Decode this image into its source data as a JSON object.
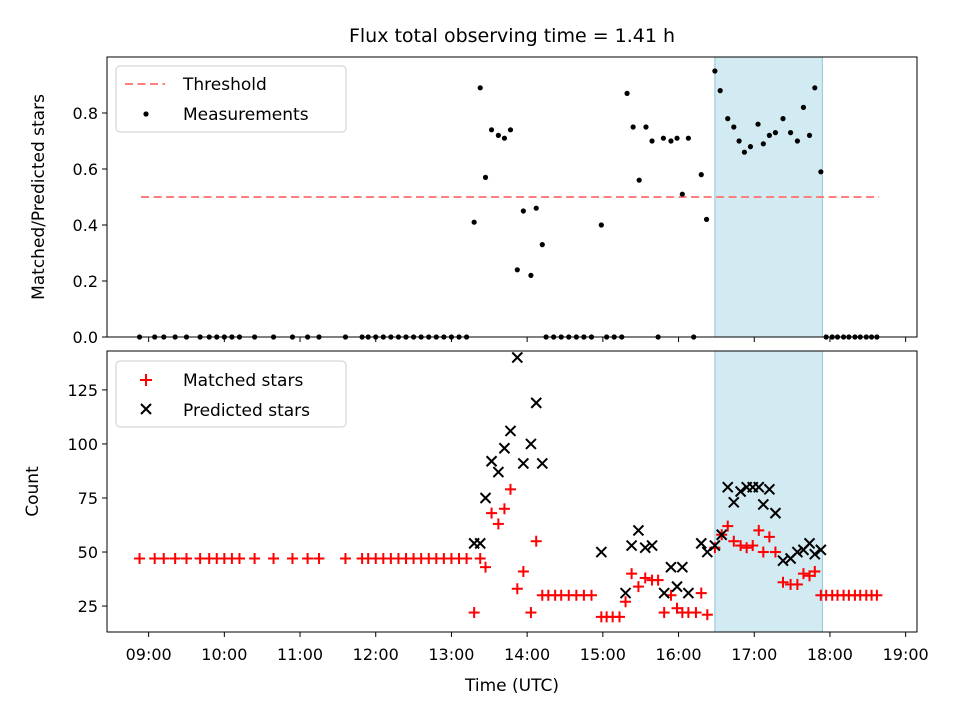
{
  "chart_data": {
    "title": "Flux total observing time = 1.41 h",
    "xlabel": "Time (UTC)",
    "x_ticks": [
      "09:00",
      "10:00",
      "11:00",
      "12:00",
      "13:00",
      "14:00",
      "15:00",
      "16:00",
      "17:00",
      "18:00",
      "19:00"
    ],
    "x_range_hours": [
      8.45,
      19.15
    ],
    "highlight_span_hours": [
      16.48,
      17.9
    ],
    "colors": {
      "threshold": "#ff7f7f",
      "measurement": "#000000",
      "matched": "#ff0000",
      "predicted": "#000000",
      "highlight": "#add8e6"
    },
    "panels": [
      {
        "type": "scatter",
        "ylabel": "Matched/Predicted stars",
        "ylim": [
          0,
          1.0
        ],
        "y_ticks": [
          "0.0",
          "0.2",
          "0.4",
          "0.6",
          "0.8"
        ],
        "y_tick_values": [
          0,
          0.2,
          0.4,
          0.6,
          0.8
        ],
        "legend": "top-left",
        "threshold": {
          "name": "Threshold",
          "value": 0.5,
          "x_range": [
            8.9,
            18.65
          ]
        },
        "series": [
          {
            "name": "Measurements",
            "points": [
              [
                8.88,
                0
              ],
              [
                9.08,
                0
              ],
              [
                9.2,
                0
              ],
              [
                9.35,
                0
              ],
              [
                9.5,
                0
              ],
              [
                9.68,
                0
              ],
              [
                9.8,
                0
              ],
              [
                9.9,
                0
              ],
              [
                10.0,
                0
              ],
              [
                10.1,
                0
              ],
              [
                10.2,
                0
              ],
              [
                10.4,
                0
              ],
              [
                10.65,
                0
              ],
              [
                10.9,
                0
              ],
              [
                11.1,
                0
              ],
              [
                11.25,
                0
              ],
              [
                11.6,
                0
              ],
              [
                11.82,
                0
              ],
              [
                11.9,
                0
              ],
              [
                12.0,
                0
              ],
              [
                12.1,
                0
              ],
              [
                12.2,
                0
              ],
              [
                12.3,
                0
              ],
              [
                12.4,
                0
              ],
              [
                12.5,
                0
              ],
              [
                12.6,
                0
              ],
              [
                12.7,
                0
              ],
              [
                12.8,
                0
              ],
              [
                12.9,
                0
              ],
              [
                13.0,
                0
              ],
              [
                13.1,
                0
              ],
              [
                13.2,
                0
              ],
              [
                13.3,
                0.41
              ],
              [
                13.38,
                0.89
              ],
              [
                13.45,
                0.57
              ],
              [
                13.53,
                0.74
              ],
              [
                13.62,
                0.72
              ],
              [
                13.7,
                0.71
              ],
              [
                13.78,
                0.74
              ],
              [
                13.87,
                0.24
              ],
              [
                13.95,
                0.45
              ],
              [
                14.05,
                0.22
              ],
              [
                14.12,
                0.46
              ],
              [
                14.2,
                0.33
              ],
              [
                14.25,
                0
              ],
              [
                14.35,
                0
              ],
              [
                14.45,
                0
              ],
              [
                14.55,
                0
              ],
              [
                14.65,
                0
              ],
              [
                14.75,
                0
              ],
              [
                14.85,
                0
              ],
              [
                14.98,
                0.4
              ],
              [
                15.05,
                0
              ],
              [
                15.15,
                0
              ],
              [
                15.25,
                0
              ],
              [
                15.32,
                0.87
              ],
              [
                15.4,
                0.75
              ],
              [
                15.48,
                0.56
              ],
              [
                15.57,
                0.75
              ],
              [
                15.65,
                0.7
              ],
              [
                15.73,
                0
              ],
              [
                15.8,
                0.71
              ],
              [
                15.9,
                0.7
              ],
              [
                15.98,
                0.71
              ],
              [
                16.05,
                0.51
              ],
              [
                16.13,
                0.71
              ],
              [
                16.2,
                0
              ],
              [
                16.3,
                0.58
              ],
              [
                16.37,
                0.42
              ],
              [
                16.48,
                0.95
              ],
              [
                16.55,
                0.88
              ],
              [
                16.65,
                0.78
              ],
              [
                16.73,
                0.75
              ],
              [
                16.8,
                0.7
              ],
              [
                16.87,
                0.66
              ],
              [
                16.95,
                0.68
              ],
              [
                17.05,
                0.76
              ],
              [
                17.12,
                0.69
              ],
              [
                17.2,
                0.72
              ],
              [
                17.28,
                0.73
              ],
              [
                17.38,
                0.78
              ],
              [
                17.48,
                0.73
              ],
              [
                17.57,
                0.7
              ],
              [
                17.65,
                0.82
              ],
              [
                17.73,
                0.72
              ],
              [
                17.8,
                0.89
              ],
              [
                17.88,
                0.59
              ],
              [
                17.95,
                0
              ],
              [
                18.03,
                0
              ],
              [
                18.1,
                0
              ],
              [
                18.18,
                0
              ],
              [
                18.25,
                0
              ],
              [
                18.33,
                0
              ],
              [
                18.4,
                0
              ],
              [
                18.48,
                0
              ],
              [
                18.55,
                0
              ],
              [
                18.62,
                0
              ]
            ]
          }
        ]
      },
      {
        "type": "scatter",
        "ylabel": "Count",
        "ylim": [
          13,
          143
        ],
        "y_ticks": [
          "25",
          "50",
          "75",
          "100",
          "125"
        ],
        "y_tick_values": [
          25,
          50,
          75,
          100,
          125
        ],
        "legend": "top-left",
        "series": [
          {
            "name": "Matched stars",
            "marker": "plus",
            "points": [
              [
                8.88,
                47
              ],
              [
                9.08,
                47
              ],
              [
                9.2,
                47
              ],
              [
                9.35,
                47
              ],
              [
                9.5,
                47
              ],
              [
                9.68,
                47
              ],
              [
                9.8,
                47
              ],
              [
                9.9,
                47
              ],
              [
                10.0,
                47
              ],
              [
                10.1,
                47
              ],
              [
                10.2,
                47
              ],
              [
                10.4,
                47
              ],
              [
                10.65,
                47
              ],
              [
                10.9,
                47
              ],
              [
                11.1,
                47
              ],
              [
                11.25,
                47
              ],
              [
                11.6,
                47
              ],
              [
                11.82,
                47
              ],
              [
                11.9,
                47
              ],
              [
                12.0,
                47
              ],
              [
                12.1,
                47
              ],
              [
                12.2,
                47
              ],
              [
                12.3,
                47
              ],
              [
                12.4,
                47
              ],
              [
                12.5,
                47
              ],
              [
                12.6,
                47
              ],
              [
                12.7,
                47
              ],
              [
                12.8,
                47
              ],
              [
                12.9,
                47
              ],
              [
                13.0,
                47
              ],
              [
                13.1,
                47
              ],
              [
                13.2,
                47
              ],
              [
                13.3,
                22
              ],
              [
                13.38,
                47
              ],
              [
                13.45,
                43
              ],
              [
                13.53,
                68
              ],
              [
                13.62,
                63
              ],
              [
                13.7,
                70
              ],
              [
                13.78,
                79
              ],
              [
                13.87,
                33
              ],
              [
                13.95,
                41
              ],
              [
                14.05,
                22
              ],
              [
                14.12,
                55
              ],
              [
                14.2,
                30
              ],
              [
                14.28,
                30
              ],
              [
                14.37,
                30
              ],
              [
                14.45,
                30
              ],
              [
                14.55,
                30
              ],
              [
                14.65,
                30
              ],
              [
                14.75,
                30
              ],
              [
                14.85,
                30
              ],
              [
                14.98,
                20
              ],
              [
                15.05,
                20
              ],
              [
                15.13,
                20
              ],
              [
                15.22,
                20
              ],
              [
                15.3,
                27
              ],
              [
                15.38,
                40
              ],
              [
                15.47,
                34
              ],
              [
                15.56,
                38
              ],
              [
                15.65,
                37
              ],
              [
                15.73,
                37
              ],
              [
                15.81,
                22
              ],
              [
                15.9,
                30
              ],
              [
                15.98,
                24
              ],
              [
                16.05,
                22
              ],
              [
                16.13,
                22
              ],
              [
                16.23,
                22
              ],
              [
                16.3,
                31
              ],
              [
                16.38,
                21
              ],
              [
                16.48,
                52
              ],
              [
                16.57,
                58
              ],
              [
                16.65,
                62
              ],
              [
                16.73,
                55
              ],
              [
                16.82,
                53
              ],
              [
                16.9,
                52
              ],
              [
                16.98,
                53
              ],
              [
                17.06,
                60
              ],
              [
                17.12,
                50
              ],
              [
                17.2,
                57
              ],
              [
                17.28,
                50
              ],
              [
                17.38,
                36
              ],
              [
                17.48,
                35
              ],
              [
                17.57,
                35
              ],
              [
                17.65,
                40
              ],
              [
                17.73,
                39
              ],
              [
                17.8,
                41
              ],
              [
                17.88,
                30
              ],
              [
                17.95,
                30
              ],
              [
                18.03,
                30
              ],
              [
                18.1,
                30
              ],
              [
                18.18,
                30
              ],
              [
                18.25,
                30
              ],
              [
                18.33,
                30
              ],
              [
                18.4,
                30
              ],
              [
                18.48,
                30
              ],
              [
                18.55,
                30
              ],
              [
                18.62,
                30
              ]
            ]
          },
          {
            "name": "Predicted stars",
            "marker": "x",
            "points": [
              [
                13.3,
                54
              ],
              [
                13.38,
                54
              ],
              [
                13.45,
                75
              ],
              [
                13.53,
                92
              ],
              [
                13.62,
                87
              ],
              [
                13.7,
                98
              ],
              [
                13.78,
                106
              ],
              [
                13.87,
                140
              ],
              [
                13.95,
                91
              ],
              [
                14.05,
                100
              ],
              [
                14.12,
                119
              ],
              [
                14.2,
                91
              ],
              [
                14.98,
                50
              ],
              [
                15.3,
                31
              ],
              [
                15.38,
                53
              ],
              [
                15.47,
                60
              ],
              [
                15.56,
                52
              ],
              [
                15.65,
                53
              ],
              [
                15.81,
                31
              ],
              [
                15.9,
                43
              ],
              [
                15.98,
                34
              ],
              [
                16.05,
                43
              ],
              [
                16.13,
                31
              ],
              [
                16.3,
                54
              ],
              [
                16.38,
                50
              ],
              [
                16.48,
                53
              ],
              [
                16.57,
                58
              ],
              [
                16.65,
                80
              ],
              [
                16.73,
                73
              ],
              [
                16.82,
                78
              ],
              [
                16.9,
                80
              ],
              [
                16.98,
                80
              ],
              [
                17.06,
                80
              ],
              [
                17.12,
                72
              ],
              [
                17.2,
                79
              ],
              [
                17.28,
                68
              ],
              [
                17.38,
                46
              ],
              [
                17.48,
                47
              ],
              [
                17.57,
                50
              ],
              [
                17.65,
                51
              ],
              [
                17.73,
                54
              ],
              [
                17.8,
                49
              ],
              [
                17.88,
                51
              ]
            ]
          }
        ]
      }
    ]
  }
}
